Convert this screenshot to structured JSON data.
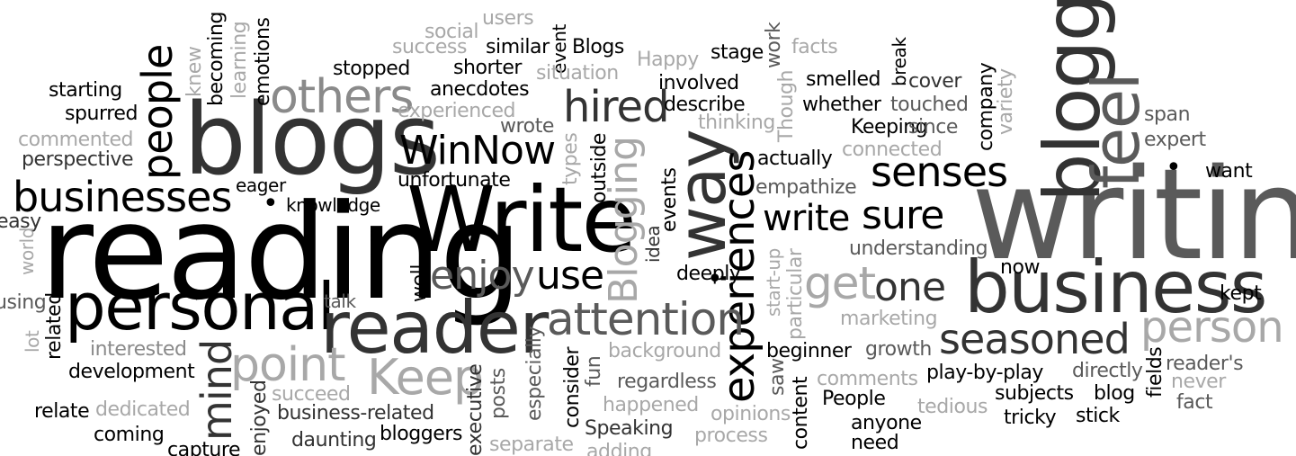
{
  "words": [
    "writing",
    "reading",
    "Write",
    "business",
    "blogs",
    "personal",
    "reader",
    "way",
    "blogging",
    "businesses",
    "experiences",
    "people",
    "others",
    "senses",
    "attention",
    "Keep",
    "point",
    "feel",
    "sure",
    "person",
    "seasoned",
    "get",
    "hired",
    "WinNow",
    "mind",
    "enjoy",
    "use",
    "Blogging",
    "write",
    "one",
    "starting",
    "spurred",
    "commented",
    "perspective",
    "easy",
    "world",
    "using",
    "lot",
    "related",
    "interested",
    "development",
    "relate",
    "dedicated",
    "coming",
    "capture",
    "enjoyed",
    "business-related",
    "daunting",
    "bloggers",
    "executive",
    "separate",
    "adding",
    "knowledge",
    "eager",
    "talk",
    "succeed",
    "posts",
    "especially",
    "consider",
    "fun",
    "happened",
    "Speaking",
    "regardless",
    "background",
    "opinions",
    "process",
    "saw",
    "content",
    "People",
    "anyone",
    "comments",
    "growth",
    "play-by-play",
    "beginner",
    "marketing",
    "particular",
    "start-up",
    "deeply.",
    "well",
    "idea",
    "events",
    "empathize",
    "actually",
    "understanding",
    "now",
    "connected",
    "Keeping",
    "since",
    "whether",
    "touched",
    "smelled",
    "cover",
    "break",
    "company",
    "variety",
    "span",
    "expert",
    "want",
    "kept",
    "reader's",
    "never",
    "fact",
    "fields",
    "directly",
    "blog",
    "subjects",
    "stick",
    "tricky",
    "tedious",
    "need",
    "thinking",
    "describe",
    "involved",
    "stage",
    "work",
    "facts",
    "Happy",
    "Blogs",
    "event",
    "situation",
    "similar",
    "shorter",
    "users",
    "social",
    "success",
    "anecdotes",
    "stopped",
    "experienced",
    "wrote",
    "types",
    "outside",
    "unfortunate",
    "knew",
    "becoming",
    "learning",
    "emotions",
    "Though"
  ]
}
